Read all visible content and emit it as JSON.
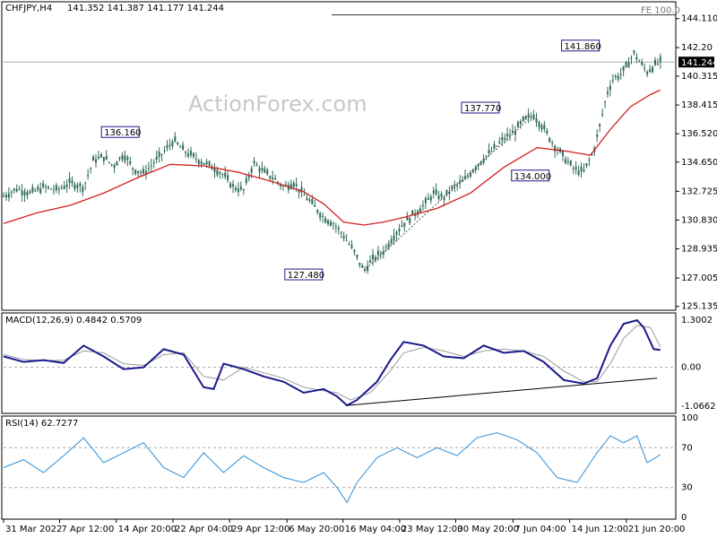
{
  "header": {
    "symbol": "CHFJPY,H4",
    "ohlc": "141.352 141.387 141.177 141.244",
    "watermark": "ActionForex.com"
  },
  "colors": {
    "candle": "#2f6b5a",
    "ma": "#d32020",
    "macd": "#1a1a8c",
    "signal": "#9a9a9a",
    "rsi": "#2f8fd6",
    "grid": "#cccccc",
    "price_box": "#000000"
  },
  "chart_data": [
    {
      "type": "candlestick",
      "name": "price",
      "current_price": "141.244",
      "fib_label": "FE 100.0",
      "fib_level": 144.35,
      "ylim": [
        125.0,
        145.1
      ],
      "y_tick_labels": [
        "144.110",
        "142.20",
        "140.315",
        "138.415",
        "136.520",
        "134.650",
        "132.725",
        "130.830",
        "128.935",
        "127.005",
        "125.135"
      ],
      "x_tick_labels": [
        "31 Mar 2022",
        "7 Apr 12:00",
        "14 Apr 20:00",
        "22 Apr 04:00",
        "29 Apr 12:00",
        "6 May 20:00",
        "16 May 04:00",
        "23 May 12:00",
        "30 May 20:00",
        "7 Jun 04:00",
        "14 Jun 12:00",
        "21 Jun 20:00"
      ],
      "x_positions": [
        0,
        0.084,
        0.169,
        0.254,
        0.339,
        0.425,
        0.509,
        0.594,
        0.678,
        0.764,
        0.849,
        0.934
      ],
      "price_path": [
        [
          0.0,
          132.4
        ],
        [
          0.02,
          132.9
        ],
        [
          0.04,
          132.6
        ],
        [
          0.06,
          133.0
        ],
        [
          0.08,
          132.8
        ],
        [
          0.1,
          133.3
        ],
        [
          0.12,
          133.0
        ],
        [
          0.135,
          134.8
        ],
        [
          0.15,
          135.0
        ],
        [
          0.165,
          134.4
        ],
        [
          0.18,
          135.2
        ],
        [
          0.195,
          134.2
        ],
        [
          0.21,
          133.9
        ],
        [
          0.225,
          134.6
        ],
        [
          0.24,
          135.3
        ],
        [
          0.255,
          136.1
        ],
        [
          0.27,
          135.4
        ],
        [
          0.285,
          135.0
        ],
        [
          0.3,
          134.6
        ],
        [
          0.315,
          134.3
        ],
        [
          0.33,
          133.8
        ],
        [
          0.345,
          133.0
        ],
        [
          0.36,
          132.8
        ],
        [
          0.375,
          134.6
        ],
        [
          0.39,
          134.0
        ],
        [
          0.405,
          133.6
        ],
        [
          0.42,
          133.0
        ],
        [
          0.435,
          133.3
        ],
        [
          0.45,
          132.5
        ],
        [
          0.465,
          131.8
        ],
        [
          0.48,
          131.0
        ],
        [
          0.495,
          130.6
        ],
        [
          0.51,
          129.8
        ],
        [
          0.525,
          128.8
        ],
        [
          0.54,
          127.5
        ],
        [
          0.555,
          128.3
        ],
        [
          0.57,
          128.8
        ],
        [
          0.585,
          129.8
        ],
        [
          0.6,
          130.6
        ],
        [
          0.615,
          131.2
        ],
        [
          0.63,
          131.8
        ],
        [
          0.645,
          132.6
        ],
        [
          0.66,
          132.3
        ],
        [
          0.675,
          133.0
        ],
        [
          0.69,
          133.4
        ],
        [
          0.705,
          134.2
        ],
        [
          0.72,
          134.9
        ],
        [
          0.735,
          135.5
        ],
        [
          0.75,
          136.2
        ],
        [
          0.765,
          136.6
        ],
        [
          0.78,
          137.4
        ],
        [
          0.795,
          137.77
        ],
        [
          0.81,
          136.9
        ],
        [
          0.825,
          135.8
        ],
        [
          0.84,
          135.0
        ],
        [
          0.855,
          134.2
        ],
        [
          0.87,
          134.0
        ],
        [
          0.885,
          135.4
        ],
        [
          0.895,
          137.2
        ],
        [
          0.905,
          139.2
        ],
        [
          0.915,
          140.2
        ],
        [
          0.925,
          140.4
        ],
        [
          0.935,
          141.0
        ],
        [
          0.945,
          141.86
        ],
        [
          0.955,
          141.2
        ],
        [
          0.965,
          140.6
        ],
        [
          0.975,
          141.0
        ],
        [
          0.985,
          141.25
        ]
      ],
      "ma_path": [
        [
          0.0,
          130.6
        ],
        [
          0.05,
          131.3
        ],
        [
          0.1,
          131.8
        ],
        [
          0.15,
          132.6
        ],
        [
          0.2,
          133.6
        ],
        [
          0.25,
          134.5
        ],
        [
          0.3,
          134.4
        ],
        [
          0.35,
          134.0
        ],
        [
          0.4,
          133.4
        ],
        [
          0.45,
          132.7
        ],
        [
          0.48,
          131.9
        ],
        [
          0.51,
          130.7
        ],
        [
          0.54,
          130.5
        ],
        [
          0.57,
          130.7
        ],
        [
          0.6,
          131.0
        ],
        [
          0.65,
          131.6
        ],
        [
          0.7,
          132.6
        ],
        [
          0.75,
          134.3
        ],
        [
          0.8,
          135.6
        ],
        [
          0.84,
          135.4
        ],
        [
          0.88,
          135.1
        ],
        [
          0.91,
          136.8
        ],
        [
          0.94,
          138.3
        ],
        [
          0.97,
          139.1
        ],
        [
          0.985,
          139.4
        ]
      ],
      "labels": [
        {
          "text": "136.160",
          "x": 0.175,
          "y": 136.16
        },
        {
          "text": "127.480",
          "x": 0.45,
          "y": 127.48
        },
        {
          "text": "137.770",
          "x": 0.715,
          "y": 137.77
        },
        {
          "text": "134.000",
          "x": 0.79,
          "y": 134.0
        },
        {
          "text": "141.860",
          "x": 0.865,
          "y": 141.86
        }
      ],
      "trendline": [
        [
          0.54,
          127.48
        ],
        [
          0.795,
          137.77
        ]
      ]
    },
    {
      "type": "line",
      "name": "macd",
      "title": "MACD(12,26,9) 0.4842 0.5709",
      "ylim": [
        -1.22,
        1.45
      ],
      "y_tick_labels": [
        "1.3002",
        "0.00",
        "-1.0662"
      ],
      "y_tick_values": [
        1.3002,
        0.0,
        -1.0662
      ],
      "macd": [
        [
          0.0,
          0.3
        ],
        [
          0.03,
          0.15
        ],
        [
          0.06,
          0.2
        ],
        [
          0.09,
          0.12
        ],
        [
          0.12,
          0.6
        ],
        [
          0.15,
          0.3
        ],
        [
          0.18,
          -0.05
        ],
        [
          0.21,
          0.0
        ],
        [
          0.24,
          0.5
        ],
        [
          0.27,
          0.35
        ],
        [
          0.3,
          -0.55
        ],
        [
          0.315,
          -0.6
        ],
        [
          0.33,
          0.1
        ],
        [
          0.36,
          -0.05
        ],
        [
          0.39,
          -0.25
        ],
        [
          0.42,
          -0.4
        ],
        [
          0.45,
          -0.7
        ],
        [
          0.48,
          -0.6
        ],
        [
          0.5,
          -0.8
        ],
        [
          0.515,
          -1.05
        ],
        [
          0.53,
          -0.9
        ],
        [
          0.56,
          -0.4
        ],
        [
          0.58,
          0.2
        ],
        [
          0.6,
          0.7
        ],
        [
          0.63,
          0.6
        ],
        [
          0.66,
          0.3
        ],
        [
          0.69,
          0.25
        ],
        [
          0.72,
          0.6
        ],
        [
          0.75,
          0.4
        ],
        [
          0.78,
          0.45
        ],
        [
          0.81,
          0.15
        ],
        [
          0.84,
          -0.35
        ],
        [
          0.87,
          -0.45
        ],
        [
          0.89,
          -0.3
        ],
        [
          0.91,
          0.6
        ],
        [
          0.93,
          1.2
        ],
        [
          0.95,
          1.3
        ],
        [
          0.96,
          1.1
        ],
        [
          0.975,
          0.5
        ],
        [
          0.985,
          0.48
        ]
      ],
      "signal": [
        [
          0.0,
          0.35
        ],
        [
          0.03,
          0.22
        ],
        [
          0.06,
          0.18
        ],
        [
          0.09,
          0.2
        ],
        [
          0.12,
          0.45
        ],
        [
          0.15,
          0.4
        ],
        [
          0.18,
          0.1
        ],
        [
          0.21,
          0.05
        ],
        [
          0.24,
          0.35
        ],
        [
          0.27,
          0.4
        ],
        [
          0.3,
          -0.25
        ],
        [
          0.33,
          -0.35
        ],
        [
          0.36,
          0.0
        ],
        [
          0.39,
          -0.15
        ],
        [
          0.42,
          -0.3
        ],
        [
          0.45,
          -0.55
        ],
        [
          0.48,
          -0.65
        ],
        [
          0.5,
          -0.7
        ],
        [
          0.52,
          -0.9
        ],
        [
          0.55,
          -0.7
        ],
        [
          0.58,
          -0.1
        ],
        [
          0.6,
          0.4
        ],
        [
          0.63,
          0.55
        ],
        [
          0.66,
          0.45
        ],
        [
          0.69,
          0.3
        ],
        [
          0.72,
          0.45
        ],
        [
          0.75,
          0.5
        ],
        [
          0.78,
          0.45
        ],
        [
          0.81,
          0.3
        ],
        [
          0.84,
          -0.1
        ],
        [
          0.87,
          -0.4
        ],
        [
          0.89,
          -0.4
        ],
        [
          0.91,
          0.1
        ],
        [
          0.93,
          0.8
        ],
        [
          0.95,
          1.15
        ],
        [
          0.97,
          1.1
        ],
        [
          0.985,
          0.57
        ]
      ],
      "trendline": [
        [
          0.515,
          -1.05
        ],
        [
          0.98,
          -0.3
        ]
      ]
    },
    {
      "type": "line",
      "name": "rsi",
      "title": "RSI(14) 62.7277",
      "ylim": [
        0,
        100
      ],
      "y_tick_labels": [
        "100",
        "70",
        "30",
        "0"
      ],
      "y_tick_values": [
        100,
        70,
        30,
        0
      ],
      "rsi": [
        [
          0.0,
          50
        ],
        [
          0.03,
          58
        ],
        [
          0.06,
          45
        ],
        [
          0.09,
          62
        ],
        [
          0.12,
          80
        ],
        [
          0.15,
          55
        ],
        [
          0.18,
          65
        ],
        [
          0.21,
          75
        ],
        [
          0.24,
          50
        ],
        [
          0.27,
          40
        ],
        [
          0.3,
          65
        ],
        [
          0.33,
          45
        ],
        [
          0.36,
          62
        ],
        [
          0.39,
          50
        ],
        [
          0.42,
          40
        ],
        [
          0.45,
          35
        ],
        [
          0.48,
          45
        ],
        [
          0.5,
          30
        ],
        [
          0.515,
          15
        ],
        [
          0.53,
          35
        ],
        [
          0.56,
          60
        ],
        [
          0.59,
          70
        ],
        [
          0.62,
          60
        ],
        [
          0.65,
          70
        ],
        [
          0.68,
          62
        ],
        [
          0.71,
          80
        ],
        [
          0.74,
          85
        ],
        [
          0.77,
          78
        ],
        [
          0.8,
          65
        ],
        [
          0.83,
          40
        ],
        [
          0.86,
          35
        ],
        [
          0.89,
          65
        ],
        [
          0.91,
          82
        ],
        [
          0.93,
          75
        ],
        [
          0.95,
          82
        ],
        [
          0.965,
          55
        ],
        [
          0.985,
          63
        ]
      ]
    }
  ]
}
